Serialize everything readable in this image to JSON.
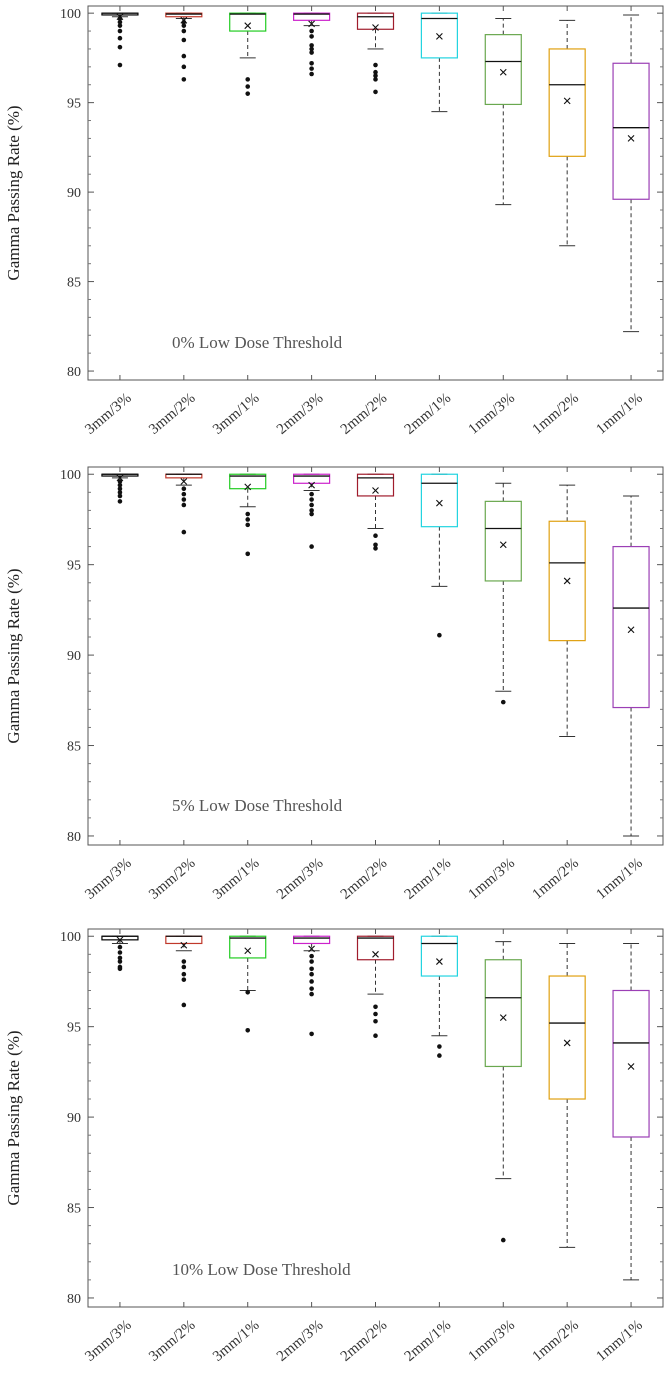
{
  "chart_data": [
    {
      "type": "box",
      "annotation": "0% Low Dose Threshold",
      "ylabel": "Gamma Passing Rate (%)",
      "ylim": [
        79.5,
        100.4
      ],
      "yticks": [
        "80",
        "85",
        "90",
        "95",
        "100"
      ],
      "categories": [
        "3mm/3%",
        "3mm/2%",
        "3mm/1%",
        "2mm/3%",
        "2mm/2%",
        "2mm/1%",
        "1mm/3%",
        "1mm/2%",
        "1mm/1%"
      ],
      "colors": [
        "#000000",
        "#c0392b",
        "#22cc22",
        "#cc22cc",
        "#a01c2c",
        "#22d4e0",
        "#6aa84f",
        "#e0a010",
        "#9b3fb5"
      ],
      "boxes": [
        {
          "wlo": 99.8,
          "q1": 99.9,
          "med": 100.0,
          "q3": 100.0,
          "whi": 100.0,
          "mean": 99.8,
          "outliers": [
            99.7,
            99.5,
            99.3,
            99.0,
            98.6,
            98.1,
            97.1
          ]
        },
        {
          "wlo": 99.7,
          "q1": 99.8,
          "med": 99.95,
          "q3": 100.0,
          "whi": 100.0,
          "mean": 99.6,
          "outliers": [
            99.5,
            99.3,
            99.0,
            98.5,
            97.6,
            97.0,
            96.3
          ]
        },
        {
          "wlo": 97.5,
          "q1": 99.0,
          "med": 99.95,
          "q3": 100.0,
          "whi": 100.0,
          "mean": 99.3,
          "outliers": [
            96.3,
            95.9,
            95.5
          ]
        },
        {
          "wlo": 99.3,
          "q1": 99.6,
          "med": 99.95,
          "q3": 100.0,
          "whi": 100.0,
          "mean": 99.4,
          "outliers": [
            99.0,
            98.7,
            98.2,
            98.0,
            97.8,
            97.2,
            96.9,
            96.6
          ]
        },
        {
          "wlo": 98.0,
          "q1": 99.1,
          "med": 99.8,
          "q3": 100.0,
          "whi": 100.0,
          "mean": 99.2,
          "outliers": [
            97.1,
            96.7,
            96.5,
            96.3,
            95.6
          ]
        },
        {
          "wlo": 94.5,
          "q1": 97.5,
          "med": 99.7,
          "q3": 100.0,
          "whi": 100.0,
          "mean": 98.7,
          "outliers": []
        },
        {
          "wlo": 89.3,
          "q1": 94.9,
          "med": 97.3,
          "q3": 98.8,
          "whi": 99.7,
          "mean": 96.7,
          "outliers": []
        },
        {
          "wlo": 87.0,
          "q1": 92.0,
          "med": 96.0,
          "q3": 98.0,
          "whi": 99.6,
          "mean": 95.1,
          "outliers": []
        },
        {
          "wlo": 82.2,
          "q1": 89.6,
          "med": 93.6,
          "q3": 97.2,
          "whi": 99.9,
          "mean": 93.0,
          "outliers": []
        }
      ]
    },
    {
      "type": "box",
      "annotation": "5% Low Dose Threshold",
      "ylabel": "Gamma Passing Rate (%)",
      "ylim": [
        79.5,
        100.4
      ],
      "yticks": [
        "80",
        "85",
        "90",
        "95",
        "100"
      ],
      "categories": [
        "3mm/3%",
        "3mm/2%",
        "3mm/1%",
        "2mm/3%",
        "2mm/2%",
        "2mm/1%",
        "1mm/3%",
        "1mm/2%",
        "1mm/1%"
      ],
      "colors": [
        "#000000",
        "#c0392b",
        "#22cc22",
        "#cc22cc",
        "#a01c2c",
        "#22d4e0",
        "#6aa84f",
        "#e0a010",
        "#9b3fb5"
      ],
      "boxes": [
        {
          "wlo": 99.8,
          "q1": 99.9,
          "med": 100.0,
          "q3": 100.0,
          "whi": 100.0,
          "mean": 99.8,
          "outliers": [
            99.6,
            99.4,
            99.2,
            99.0,
            98.8,
            98.5
          ]
        },
        {
          "wlo": 99.4,
          "q1": 99.8,
          "med": 100.0,
          "q3": 100.0,
          "whi": 100.0,
          "mean": 99.6,
          "outliers": [
            99.2,
            98.9,
            98.6,
            98.3,
            96.8
          ]
        },
        {
          "wlo": 98.2,
          "q1": 99.2,
          "med": 99.9,
          "q3": 100.0,
          "whi": 100.0,
          "mean": 99.3,
          "outliers": [
            97.8,
            97.5,
            97.2,
            95.6
          ]
        },
        {
          "wlo": 99.1,
          "q1": 99.5,
          "med": 99.9,
          "q3": 100.0,
          "whi": 100.0,
          "mean": 99.4,
          "outliers": [
            98.9,
            98.6,
            98.3,
            98.0,
            97.8,
            96.0
          ]
        },
        {
          "wlo": 97.0,
          "q1": 98.8,
          "med": 99.8,
          "q3": 100.0,
          "whi": 100.0,
          "mean": 99.1,
          "outliers": [
            96.6,
            96.1,
            95.9
          ]
        },
        {
          "wlo": 93.8,
          "q1": 97.1,
          "med": 99.5,
          "q3": 100.0,
          "whi": 100.0,
          "mean": 98.4,
          "outliers": [
            91.1
          ]
        },
        {
          "wlo": 88.0,
          "q1": 94.1,
          "med": 97.0,
          "q3": 98.5,
          "whi": 99.5,
          "mean": 96.1,
          "outliers": [
            87.4
          ]
        },
        {
          "wlo": 85.5,
          "q1": 90.8,
          "med": 95.1,
          "q3": 97.4,
          "whi": 99.4,
          "mean": 94.1,
          "outliers": []
        },
        {
          "wlo": 80.0,
          "q1": 87.1,
          "med": 92.6,
          "q3": 96.0,
          "whi": 98.8,
          "mean": 91.4,
          "outliers": []
        }
      ]
    },
    {
      "type": "box",
      "annotation": "10% Low Dose Threshold",
      "ylabel": "Gamma Passing Rate (%)",
      "ylim": [
        79.5,
        100.4
      ],
      "yticks": [
        "80",
        "85",
        "90",
        "95",
        "100"
      ],
      "categories": [
        "3mm/3%",
        "3mm/2%",
        "3mm/1%",
        "2mm/3%",
        "2mm/2%",
        "2mm/1%",
        "1mm/3%",
        "1mm/2%",
        "1mm/1%"
      ],
      "colors": [
        "#000000",
        "#c0392b",
        "#22cc22",
        "#cc22cc",
        "#a01c2c",
        "#22d4e0",
        "#6aa84f",
        "#e0a010",
        "#9b3fb5"
      ],
      "boxes": [
        {
          "wlo": 99.6,
          "q1": 99.8,
          "med": 100.0,
          "q3": 100.0,
          "whi": 100.0,
          "mean": 99.8,
          "outliers": [
            99.4,
            99.1,
            98.8,
            98.6,
            98.3,
            98.2
          ]
        },
        {
          "wlo": 99.2,
          "q1": 99.6,
          "med": 100.0,
          "q3": 100.0,
          "whi": 100.0,
          "mean": 99.5,
          "outliers": [
            98.6,
            98.3,
            97.9,
            97.6,
            96.2
          ]
        },
        {
          "wlo": 97.0,
          "q1": 98.8,
          "med": 99.9,
          "q3": 100.0,
          "whi": 100.0,
          "mean": 99.2,
          "outliers": [
            96.9,
            94.8
          ]
        },
        {
          "wlo": 99.2,
          "q1": 99.6,
          "med": 99.9,
          "q3": 100.0,
          "whi": 100.0,
          "mean": 99.3,
          "outliers": [
            98.9,
            98.6,
            98.2,
            97.9,
            97.5,
            97.1,
            96.8,
            94.6
          ]
        },
        {
          "wlo": 96.8,
          "q1": 98.7,
          "med": 99.9,
          "q3": 100.0,
          "whi": 100.0,
          "mean": 99.0,
          "outliers": [
            96.1,
            95.7,
            95.3,
            94.5
          ]
        },
        {
          "wlo": 94.5,
          "q1": 97.8,
          "med": 99.6,
          "q3": 100.0,
          "whi": 100.0,
          "mean": 98.6,
          "outliers": [
            93.9,
            93.4
          ]
        },
        {
          "wlo": 86.6,
          "q1": 92.8,
          "med": 96.6,
          "q3": 98.7,
          "whi": 99.7,
          "mean": 95.5,
          "outliers": [
            83.2
          ]
        },
        {
          "wlo": 82.8,
          "q1": 91.0,
          "med": 95.2,
          "q3": 97.8,
          "whi": 99.6,
          "mean": 94.1,
          "outliers": []
        },
        {
          "wlo": 81.0,
          "q1": 88.9,
          "med": 94.1,
          "q3": 97.0,
          "whi": 99.6,
          "mean": 92.8,
          "outliers": []
        }
      ]
    }
  ]
}
